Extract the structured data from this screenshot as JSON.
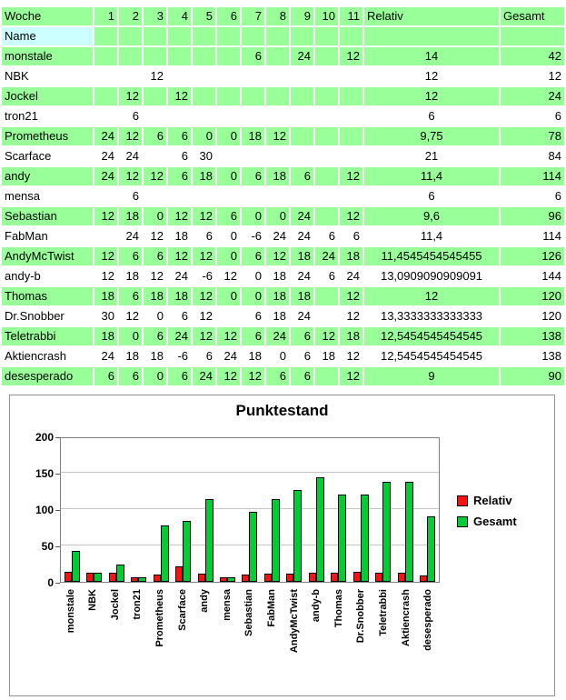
{
  "table": {
    "header_row": {
      "label": "Woche",
      "weeks": [
        "1",
        "2",
        "3",
        "4",
        "5",
        "6",
        "7",
        "8",
        "9",
        "10",
        "11"
      ],
      "relativ": "Relativ",
      "gesamt": "Gesamt"
    },
    "name_row_label": "Name",
    "rows": [
      {
        "name": "monstale",
        "weeks": [
          "",
          "",
          "",
          "",
          "",
          "",
          "6",
          "",
          "24",
          "",
          "12"
        ],
        "relativ": "14",
        "gesamt": "42"
      },
      {
        "name": "NBK",
        "weeks": [
          "",
          "",
          "12",
          "",
          "",
          "",
          "",
          "",
          "",
          "",
          ""
        ],
        "relativ": "12",
        "gesamt": "12"
      },
      {
        "name": "Jockel",
        "weeks": [
          "",
          "12",
          "",
          "12",
          "",
          "",
          "",
          "",
          "",
          "",
          ""
        ],
        "relativ": "12",
        "gesamt": "24"
      },
      {
        "name": "tron21",
        "weeks": [
          "",
          "6",
          "",
          "",
          "",
          "",
          "",
          "",
          "",
          "",
          ""
        ],
        "relativ": "6",
        "gesamt": "6"
      },
      {
        "name": "Prometheus",
        "weeks": [
          "24",
          "12",
          "6",
          "6",
          "0",
          "0",
          "18",
          "12",
          "",
          "",
          ""
        ],
        "relativ": "9,75",
        "gesamt": "78"
      },
      {
        "name": "Scarface",
        "weeks": [
          "24",
          "24",
          "",
          "6",
          "30",
          "",
          "",
          "",
          "",
          "",
          ""
        ],
        "relativ": "21",
        "gesamt": "84"
      },
      {
        "name": "andy",
        "weeks": [
          "24",
          "12",
          "12",
          "6",
          "18",
          "0",
          "6",
          "18",
          "6",
          "",
          "12"
        ],
        "relativ": "11,4",
        "gesamt": "114"
      },
      {
        "name": "mensa",
        "weeks": [
          "",
          "6",
          "",
          "",
          "",
          "",
          "",
          "",
          "",
          "",
          ""
        ],
        "relativ": "6",
        "gesamt": "6"
      },
      {
        "name": "Sebastian",
        "weeks": [
          "12",
          "18",
          "0",
          "12",
          "12",
          "6",
          "0",
          "0",
          "24",
          "",
          "12"
        ],
        "relativ": "9,6",
        "gesamt": "96"
      },
      {
        "name": "FabMan",
        "weeks": [
          "",
          "24",
          "12",
          "18",
          "6",
          "0",
          "-6",
          "24",
          "24",
          "6",
          "6"
        ],
        "relativ": "11,4",
        "gesamt": "114"
      },
      {
        "name": "AndyMcTwist",
        "weeks": [
          "12",
          "6",
          "6",
          "12",
          "12",
          "0",
          "6",
          "12",
          "18",
          "24",
          "18"
        ],
        "relativ": "11,4545454545455",
        "gesamt": "126"
      },
      {
        "name": "andy-b",
        "weeks": [
          "12",
          "18",
          "12",
          "24",
          "-6",
          "12",
          "0",
          "18",
          "24",
          "6",
          "24"
        ],
        "relativ": "13,0909090909091",
        "gesamt": "144"
      },
      {
        "name": "Thomas",
        "weeks": [
          "18",
          "6",
          "18",
          "18",
          "12",
          "0",
          "0",
          "18",
          "18",
          "",
          "12"
        ],
        "relativ": "12",
        "gesamt": "120"
      },
      {
        "name": "Dr.Snobber",
        "weeks": [
          "30",
          "12",
          "0",
          "6",
          "12",
          "",
          "6",
          "18",
          "24",
          "",
          "12"
        ],
        "relativ": "13,3333333333333",
        "gesamt": "120"
      },
      {
        "name": "Teletrabbi",
        "weeks": [
          "18",
          "0",
          "6",
          "24",
          "12",
          "12",
          "6",
          "24",
          "6",
          "12",
          "18"
        ],
        "relativ": "12,5454545454545",
        "gesamt": "138"
      },
      {
        "name": "Aktiencrash",
        "weeks": [
          "24",
          "18",
          "18",
          "-6",
          "6",
          "24",
          "18",
          "0",
          "6",
          "18",
          "12"
        ],
        "relativ": "12,5454545454545",
        "gesamt": "138"
      },
      {
        "name": "desesperado",
        "weeks": [
          "6",
          "6",
          "0",
          "6",
          "24",
          "12",
          "12",
          "6",
          "6",
          "",
          "12"
        ],
        "relativ": "9",
        "gesamt": "90"
      }
    ]
  },
  "chart_data": {
    "type": "bar",
    "title": "Punktestand",
    "categories": [
      "monstale",
      "NBK",
      "Jockel",
      "tron21",
      "Prometheus",
      "Scarface",
      "andy",
      "mensa",
      "Sebastian",
      "FabMan",
      "AndyMcTwist",
      "andy-b",
      "Thomas",
      "Dr.Snobber",
      "Teletrabbi",
      "Aktiencrash",
      "desesperado"
    ],
    "series": [
      {
        "name": "Relativ",
        "color": "#ff1111",
        "values": [
          14,
          12,
          12,
          6,
          9.75,
          21,
          11.4,
          6,
          9.6,
          11.4,
          11.4545454545455,
          13.0909090909091,
          12,
          13.3333333333333,
          12.5454545454545,
          12.5454545454545,
          9
        ]
      },
      {
        "name": "Gesamt",
        "color": "#00cc33",
        "values": [
          42,
          12,
          24,
          6,
          78,
          84,
          114,
          6,
          96,
          114,
          126,
          144,
          120,
          120,
          138,
          138,
          90
        ]
      }
    ],
    "ylim": [
      0,
      200
    ],
    "yticks": [
      0,
      50,
      100,
      150,
      200
    ],
    "grid": true,
    "legend_position": "right"
  },
  "colors": {
    "row_green": "#99ff99",
    "name_cyan": "#ccffff",
    "relativ_series": "#ff1111",
    "gesamt_series": "#00cc33",
    "gridline": "#c6c6c6"
  }
}
